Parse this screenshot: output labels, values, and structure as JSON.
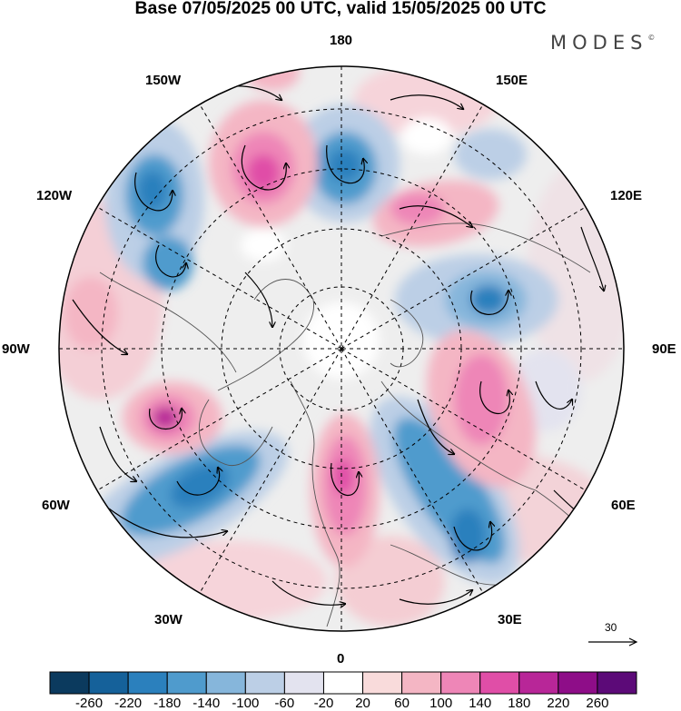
{
  "header": {
    "title": "Base 07/05/2025 00 UTC, valid 15/05/2025 00 UTC",
    "brand": "MODES",
    "brand_mark": "©"
  },
  "map": {
    "projection": "north-polar-stereographic",
    "longitude_labels": {
      "top": "180",
      "top_left": "150W",
      "top_right": "150E",
      "upper_left": "120W",
      "upper_right": "120E",
      "left": "90W",
      "right": "90E",
      "lower_left": "60W",
      "lower_right": "60E",
      "bottom_left": "30W",
      "bottom_right": "30E",
      "bottom": "0"
    },
    "reference_vector": {
      "label": "30"
    }
  },
  "colorbar": {
    "colors": [
      "#0b3a5e",
      "#15619a",
      "#2b80bd",
      "#4f9bcd",
      "#86b6db",
      "#bccfe6",
      "#e3e3ef",
      "#ffffff",
      "#f9dbdb",
      "#f4b6c4",
      "#ee86b7",
      "#e04ea7",
      "#b82698",
      "#8e0d88",
      "#5c0a78"
    ],
    "tick_labels": [
      "-260",
      "-220",
      "-180",
      "-140",
      "-100",
      "-60",
      "-20",
      "20",
      "60",
      "100",
      "140",
      "180",
      "220",
      "260"
    ]
  }
}
